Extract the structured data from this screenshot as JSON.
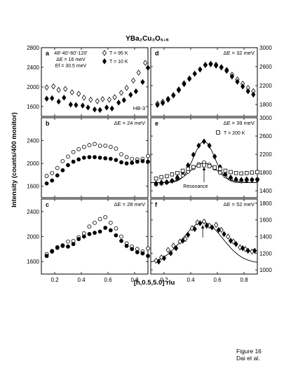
{
  "figure": {
    "title": "YBa₂Cu₃O₆.₈",
    "ylabel": "Intensity (counts/400 monitor)",
    "xlabel": "[h,0.5,5.0] rlu",
    "caption_line1": "Figure 16",
    "caption_line2": "Dai et al."
  },
  "chart_data": [
    {
      "type": "scatter",
      "panel": "a",
      "energy_label": "ΔE = 16 meV",
      "info_lines": [
        "48'-40'-60'-120'",
        "ΔE = 16 meV",
        "Ef = 30.5 meV"
      ],
      "instrument": "HB-3",
      "xlim": [
        0.1,
        0.9
      ],
      "ylim": [
        1400,
        2800
      ],
      "yticks": [
        1600,
        2000,
        2400,
        2800
      ],
      "series": [
        {
          "name": "T = 95 K",
          "marker": "open-diamond",
          "x": [
            0.14,
            0.19,
            0.23,
            0.28,
            0.33,
            0.38,
            0.42,
            0.47,
            0.52,
            0.56,
            0.61,
            0.65,
            0.7,
            0.74,
            0.79,
            0.83,
            0.88
          ],
          "y": [
            1990,
            2010,
            1940,
            1960,
            1890,
            1860,
            1780,
            1740,
            1710,
            1750,
            1740,
            1790,
            1880,
            1980,
            2130,
            2290,
            2490
          ]
        },
        {
          "name": "T = 10 K",
          "marker": "filled-diamond",
          "x": [
            0.14,
            0.18,
            0.23,
            0.27,
            0.32,
            0.36,
            0.41,
            0.45,
            0.5,
            0.54,
            0.59,
            0.63,
            0.68,
            0.72,
            0.77,
            0.81,
            0.86,
            0.9
          ],
          "y": [
            1760,
            1770,
            1700,
            1780,
            1640,
            1630,
            1620,
            1580,
            1540,
            1530,
            1580,
            1560,
            1680,
            1730,
            1840,
            1910,
            2100,
            2390
          ]
        }
      ]
    },
    {
      "type": "scatter",
      "panel": "b",
      "energy_label": "ΔE = 24 meV",
      "xlim": [
        0.1,
        0.9
      ],
      "ylim": [
        1400,
        2800
      ],
      "yticks": [
        1600,
        2000,
        2400
      ],
      "series": [
        {
          "name": "T = 95 K",
          "marker": "open-circle",
          "x": [
            0.14,
            0.18,
            0.22,
            0.26,
            0.3,
            0.34,
            0.38,
            0.42,
            0.46,
            0.5,
            0.54,
            0.58,
            0.62,
            0.66,
            0.7,
            0.74,
            0.78,
            0.82,
            0.86,
            0.9
          ],
          "y": [
            1780,
            1830,
            1920,
            2040,
            2120,
            2200,
            2250,
            2290,
            2320,
            2340,
            2310,
            2310,
            2290,
            2260,
            2160,
            2110,
            2080,
            2070,
            2080,
            2130
          ]
        },
        {
          "name": "T = 10 K",
          "marker": "filled-circle",
          "x": [
            0.14,
            0.18,
            0.22,
            0.26,
            0.3,
            0.34,
            0.38,
            0.42,
            0.46,
            0.5,
            0.54,
            0.58,
            0.62,
            0.66,
            0.7,
            0.74,
            0.78,
            0.82,
            0.86,
            0.9
          ],
          "y": [
            1650,
            1700,
            1790,
            1880,
            1970,
            2030,
            2070,
            2100,
            2110,
            2110,
            2100,
            2090,
            2080,
            2060,
            2020,
            2000,
            2010,
            2030,
            2040,
            2030
          ]
        }
      ]
    },
    {
      "type": "scatter",
      "panel": "c",
      "energy_label": "ΔE = 28 meV",
      "xlim": [
        0.1,
        0.9
      ],
      "ylim": [
        1400,
        2600
      ],
      "yticks": [
        1600,
        2000,
        2400
      ],
      "series": [
        {
          "name": "T = 95 K",
          "marker": "open-circle",
          "x": [
            0.14,
            0.18,
            0.22,
            0.26,
            0.3,
            0.34,
            0.38,
            0.42,
            0.46,
            0.5,
            0.54,
            0.58,
            0.62,
            0.66,
            0.7,
            0.74,
            0.78,
            0.82,
            0.86,
            0.9
          ],
          "y": [
            1720,
            1770,
            1830,
            1860,
            1920,
            1930,
            1990,
            2050,
            2160,
            2220,
            2280,
            2310,
            2220,
            2130,
            2000,
            1890,
            1840,
            1800,
            1760,
            1810
          ]
        },
        {
          "name": "T = 10 K",
          "marker": "filled-circle",
          "x": [
            0.14,
            0.18,
            0.22,
            0.26,
            0.3,
            0.34,
            0.38,
            0.42,
            0.46,
            0.5,
            0.54,
            0.58,
            0.62,
            0.66,
            0.7,
            0.74,
            0.78,
            0.82,
            0.86,
            0.9
          ],
          "y": [
            1690,
            1760,
            1820,
            1850,
            1840,
            1880,
            1960,
            2000,
            2040,
            2060,
            2080,
            2140,
            2100,
            2020,
            1930,
            1850,
            1800,
            1750,
            1730,
            1690
          ]
        }
      ]
    },
    {
      "type": "scatter",
      "panel": "d",
      "energy_label": "ΔE = 32 meV",
      "xlim": [
        0.1,
        0.9
      ],
      "ylim": [
        1550,
        3000
      ],
      "yticks": [
        1800,
        2200,
        2600,
        3000
      ],
      "series": [
        {
          "name": "T = 95 K",
          "marker": "open-diamond",
          "x": [
            0.15,
            0.19,
            0.23,
            0.27,
            0.31,
            0.35,
            0.39,
            0.43,
            0.47,
            0.51,
            0.55,
            0.59,
            0.63,
            0.67,
            0.71,
            0.75,
            0.79,
            0.83,
            0.87
          ],
          "y": [
            1820,
            1860,
            1920,
            2000,
            2120,
            2250,
            2350,
            2450,
            2540,
            2640,
            2660,
            2640,
            2590,
            2530,
            2430,
            2330,
            2240,
            2150,
            2080
          ]
        },
        {
          "name": "T = 10 K",
          "marker": "filled-diamond",
          "x": [
            0.15,
            0.19,
            0.23,
            0.27,
            0.31,
            0.35,
            0.39,
            0.43,
            0.47,
            0.51,
            0.55,
            0.59,
            0.63,
            0.67,
            0.71,
            0.75,
            0.79,
            0.83,
            0.87
          ],
          "y": [
            1790,
            1830,
            1900,
            1990,
            2100,
            2230,
            2340,
            2450,
            2540,
            2630,
            2650,
            2620,
            2580,
            2510,
            2390,
            2280,
            2180,
            2080,
            2010
          ]
        }
      ]
    },
    {
      "type": "scatter",
      "panel": "e",
      "energy_label": "ΔE = 39 meV",
      "annotation": "Resonance",
      "xlim": [
        0.1,
        0.9
      ],
      "ylim": [
        1250,
        3000
      ],
      "yticks": [
        1400,
        1800,
        2200,
        2600,
        3000
      ],
      "series": [
        {
          "name": "T = 95 K",
          "marker": "open-circle",
          "x": [
            0.14,
            0.18,
            0.22,
            0.26,
            0.3,
            0.34,
            0.38,
            0.42,
            0.46,
            0.5,
            0.54,
            0.58,
            0.62,
            0.66,
            0.7,
            0.74,
            0.78,
            0.82,
            0.86,
            0.9
          ],
          "y": [
            1540,
            1560,
            1580,
            1620,
            1670,
            1740,
            1820,
            1900,
            1980,
            2020,
            1970,
            1890,
            1800,
            1720,
            1660,
            1620,
            1610,
            1630,
            1640,
            1650
          ]
        },
        {
          "name": "T = 10 K",
          "marker": "filled-diamond",
          "x": [
            0.14,
            0.18,
            0.22,
            0.26,
            0.3,
            0.34,
            0.38,
            0.42,
            0.46,
            0.5,
            0.54,
            0.58,
            0.62,
            0.66,
            0.7,
            0.74,
            0.78,
            0.82,
            0.86,
            0.9
          ],
          "y": [
            1560,
            1580,
            1590,
            1620,
            1690,
            1810,
            1960,
            2190,
            2390,
            2480,
            2390,
            2150,
            1920,
            1760,
            1690,
            1650,
            1640,
            1650,
            1640,
            1640
          ]
        },
        {
          "name": "T = 200 K",
          "marker": "open-square",
          "x": [
            0.14,
            0.18,
            0.22,
            0.26,
            0.3,
            0.34,
            0.38,
            0.42,
            0.46,
            0.5,
            0.54,
            0.58,
            0.62,
            0.66,
            0.7,
            0.74,
            0.78,
            0.82,
            0.86,
            0.9
          ],
          "y": [
            1670,
            1700,
            1720,
            1760,
            1790,
            1840,
            1880,
            1920,
            1950,
            1960,
            1940,
            1910,
            1880,
            1840,
            1810,
            1790,
            1780,
            1790,
            1800,
            1810
          ]
        }
      ],
      "fits": [
        {
          "name": "T = 10 K",
          "kind": "gaussian",
          "baseline": 1580,
          "amplitude": 900,
          "center": 0.5,
          "sigma": 0.08
        },
        {
          "name": "T = 95 K",
          "kind": "gaussian",
          "baseline": 1580,
          "amplitude": 430,
          "center": 0.5,
          "sigma": 0.1
        }
      ]
    },
    {
      "type": "scatter",
      "panel": "f",
      "energy_label": "ΔE = 52 meV",
      "xlim": [
        0.1,
        0.9
      ],
      "ylim": [
        950,
        1850
      ],
      "yticks": [
        1000,
        1200,
        1400,
        1600,
        1800
      ],
      "series": [
        {
          "name": "T = 95 K",
          "marker": "open-diamond",
          "x": [
            0.14,
            0.18,
            0.23,
            0.27,
            0.32,
            0.36,
            0.41,
            0.45,
            0.5,
            0.54,
            0.59,
            0.63,
            0.68,
            0.72,
            0.77,
            0.81,
            0.86
          ],
          "y": [
            1110,
            1150,
            1240,
            1290,
            1340,
            1370,
            1500,
            1570,
            1580,
            1530,
            1540,
            1480,
            1400,
            1340,
            1270,
            1250,
            1220
          ]
        },
        {
          "name": "T = 10 K",
          "marker": "filled-diamond",
          "x": [
            0.16,
            0.2,
            0.25,
            0.29,
            0.34,
            0.38,
            0.43,
            0.47,
            0.52,
            0.56,
            0.61,
            0.65,
            0.7,
            0.74,
            0.79,
            0.83,
            0.88
          ],
          "y": [
            1100,
            1140,
            1200,
            1260,
            1350,
            1420,
            1490,
            1560,
            1530,
            1510,
            1480,
            1430,
            1350,
            1310,
            1260,
            1230,
            1230
          ]
        }
      ],
      "fits": [
        {
          "name": "fit",
          "kind": "gaussian",
          "baseline": 1080,
          "amplitude": 490,
          "center": 0.49,
          "sigma": 0.15
        }
      ]
    }
  ]
}
